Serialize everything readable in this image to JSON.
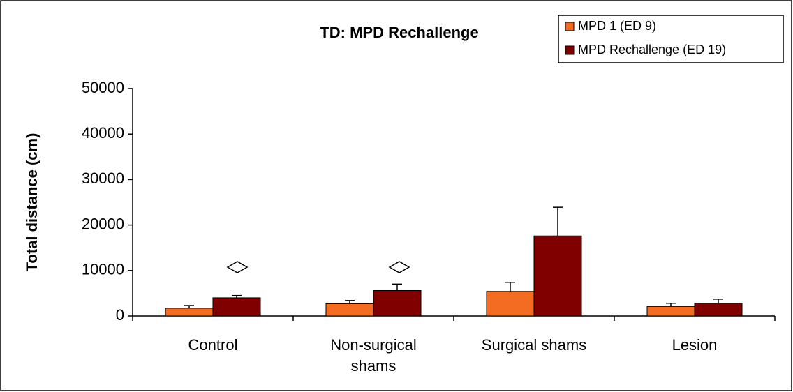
{
  "chart_data": {
    "type": "bar",
    "title": "TD: MPD Rechallenge",
    "y_label": "Total distance (cm)",
    "categories": [
      "Control",
      "Non-surgical shams",
      "Surgical shams",
      "Lesion"
    ],
    "series": [
      {
        "name": "MPD 1 (ED 9)",
        "color": "#f36c21",
        "values": [
          1700,
          2700,
          5400,
          2100
        ],
        "errors": [
          600,
          700,
          2000,
          700
        ]
      },
      {
        "name": "MPD Rechallenge (ED 19)",
        "color": "#800000",
        "values": [
          4000,
          5600,
          17600,
          2800
        ],
        "errors": [
          500,
          1400,
          6300,
          900
        ]
      }
    ],
    "ylim": [
      0,
      50000
    ],
    "yticks": [
      0,
      10000,
      20000,
      30000,
      40000,
      50000
    ],
    "legend": "top-right"
  }
}
